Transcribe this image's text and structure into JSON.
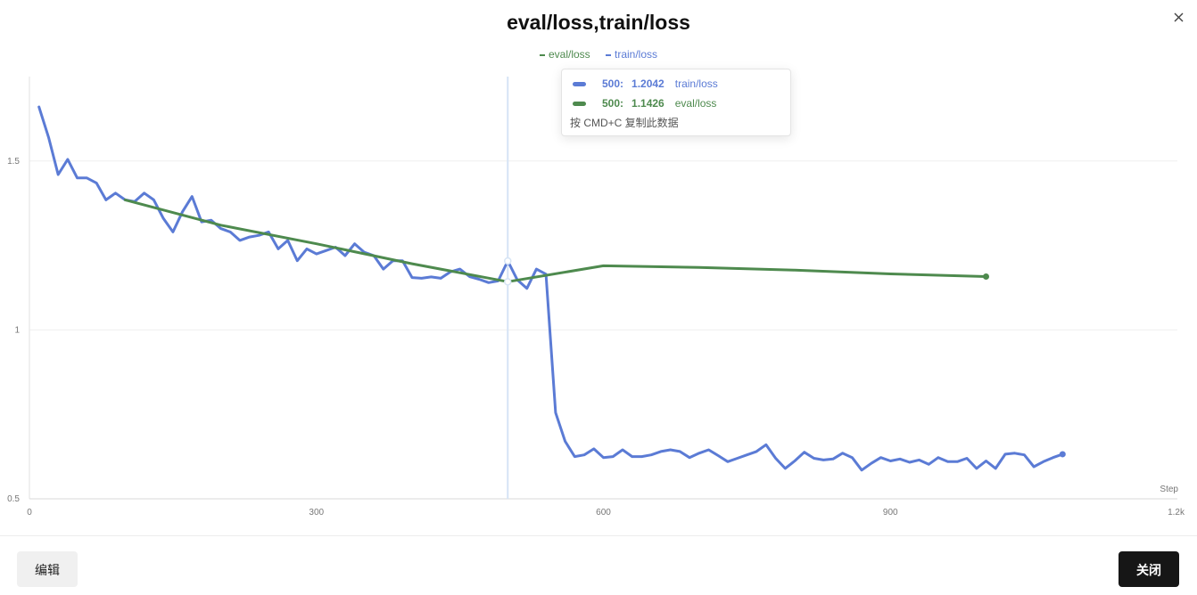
{
  "dialog": {
    "title": "eval/loss,train/loss",
    "edit_label": "编辑",
    "close_label": "关闭"
  },
  "tooltip": {
    "rows": [
      {
        "step": "500:",
        "value": "1.2042",
        "name": "train/loss",
        "color": "#5b7bd5"
      },
      {
        "step": "500:",
        "value": "1.1426",
        "name": "eval/loss",
        "color": "#4e8a4e"
      }
    ],
    "hint": "按 CMD+C 复制此数据"
  },
  "chart_data": {
    "type": "line",
    "title": "eval/loss,train/loss",
    "xlabel": "Step",
    "ylabel": "",
    "xlim": [
      0,
      1200
    ],
    "ylim": [
      0.5,
      1.75
    ],
    "x_ticks": [
      "0",
      "300",
      "600",
      "900",
      "1.2k"
    ],
    "x_tick_values": [
      0,
      300,
      600,
      900,
      1200
    ],
    "y_ticks": [
      "0.5",
      "1",
      "1.5"
    ],
    "y_tick_values": [
      0.5,
      1.0,
      1.5
    ],
    "grid": true,
    "legend_position": "top-center",
    "crosshair_step": 500,
    "series": [
      {
        "name": "eval/loss",
        "color": "#4e8a4e",
        "x": [
          100,
          200,
          300,
          400,
          500,
          600,
          700,
          800,
          900,
          1000
        ],
        "y": [
          1.385,
          1.31,
          1.255,
          1.196,
          1.1426,
          1.19,
          1.185,
          1.177,
          1.166,
          1.158
        ]
      },
      {
        "name": "train/loss",
        "color": "#5b7bd5",
        "x": [
          10,
          20,
          30,
          40,
          50,
          60,
          70,
          80,
          90,
          100,
          110,
          120,
          130,
          140,
          150,
          160,
          170,
          180,
          190,
          200,
          210,
          220,
          230,
          240,
          250,
          260,
          270,
          280,
          290,
          300,
          310,
          320,
          330,
          340,
          350,
          360,
          370,
          380,
          390,
          400,
          410,
          420,
          430,
          440,
          450,
          460,
          470,
          480,
          490,
          500,
          510,
          520,
          530,
          540,
          550,
          560,
          570,
          580,
          590,
          600,
          610,
          620,
          630,
          640,
          650,
          660,
          670,
          680,
          690,
          700,
          710,
          720,
          730,
          740,
          750,
          760,
          770,
          780,
          790,
          800,
          810,
          820,
          830,
          840,
          850,
          860,
          870,
          880,
          890,
          900,
          910,
          920,
          930,
          940,
          950,
          960,
          970,
          980,
          990,
          1000,
          1010,
          1020,
          1030,
          1040,
          1050,
          1060,
          1070,
          1080
        ],
        "y": [
          1.66,
          1.57,
          1.46,
          1.505,
          1.45,
          1.45,
          1.435,
          1.385,
          1.405,
          1.385,
          1.38,
          1.405,
          1.385,
          1.33,
          1.29,
          1.35,
          1.395,
          1.32,
          1.325,
          1.3,
          1.29,
          1.265,
          1.275,
          1.28,
          1.29,
          1.24,
          1.265,
          1.205,
          1.24,
          1.225,
          1.235,
          1.245,
          1.22,
          1.255,
          1.23,
          1.22,
          1.18,
          1.205,
          1.205,
          1.155,
          1.153,
          1.157,
          1.153,
          1.172,
          1.18,
          1.158,
          1.15,
          1.14,
          1.145,
          1.2042,
          1.148,
          1.123,
          1.18,
          1.165,
          0.755,
          0.67,
          0.625,
          0.63,
          0.648,
          0.622,
          0.625,
          0.645,
          0.625,
          0.625,
          0.63,
          0.64,
          0.645,
          0.64,
          0.622,
          0.635,
          0.645,
          0.628,
          0.61,
          0.62,
          0.63,
          0.64,
          0.66,
          0.62,
          0.59,
          0.612,
          0.638,
          0.62,
          0.615,
          0.618,
          0.635,
          0.622,
          0.585,
          0.605,
          0.622,
          0.612,
          0.618,
          0.608,
          0.615,
          0.602,
          0.622,
          0.61,
          0.61,
          0.62,
          0.59,
          0.612,
          0.59,
          0.632,
          0.635,
          0.63,
          0.595,
          0.61,
          0.622,
          0.632
        ]
      }
    ]
  }
}
